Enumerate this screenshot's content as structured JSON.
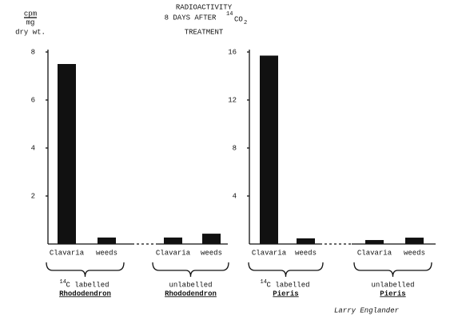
{
  "title": {
    "line1": "RADIOACTIVITY",
    "line2": "8 DAYS AFTER",
    "sup": "14",
    "chem": "CO",
    "sub": "2",
    "line3": "TREATMENT"
  },
  "y_label": {
    "line1": "cpm",
    "line2": "mg",
    "line3": "dry wt."
  },
  "signature": "Larry Englander",
  "chart_data": [
    {
      "type": "bar",
      "categories": [
        "Clavaria",
        "weeds",
        "Clavaria",
        "weeds"
      ],
      "values": [
        7.5,
        0.27,
        0.27,
        0.43
      ],
      "groups": [
        {
          "sup": "14",
          "label": "C labelled",
          "name": "Rhododendron"
        },
        {
          "label": "unlabelled",
          "name": "Rhododendron"
        }
      ],
      "ylim": [
        0,
        8
      ],
      "yticks": [
        2,
        4,
        6,
        8
      ],
      "color": "#111111"
    },
    {
      "type": "bar",
      "categories": [
        "Clavaria",
        "weeds",
        "Clavaria",
        "weeds"
      ],
      "values": [
        15.7,
        0.47,
        0.33,
        0.53
      ],
      "groups": [
        {
          "sup": "14",
          "label": "C labelled",
          "name": "Pieris"
        },
        {
          "label": "unlabelled",
          "name": "Pieris"
        }
      ],
      "ylim": [
        0,
        16
      ],
      "yticks": [
        4,
        8,
        12,
        16
      ],
      "color": "#111111"
    }
  ]
}
